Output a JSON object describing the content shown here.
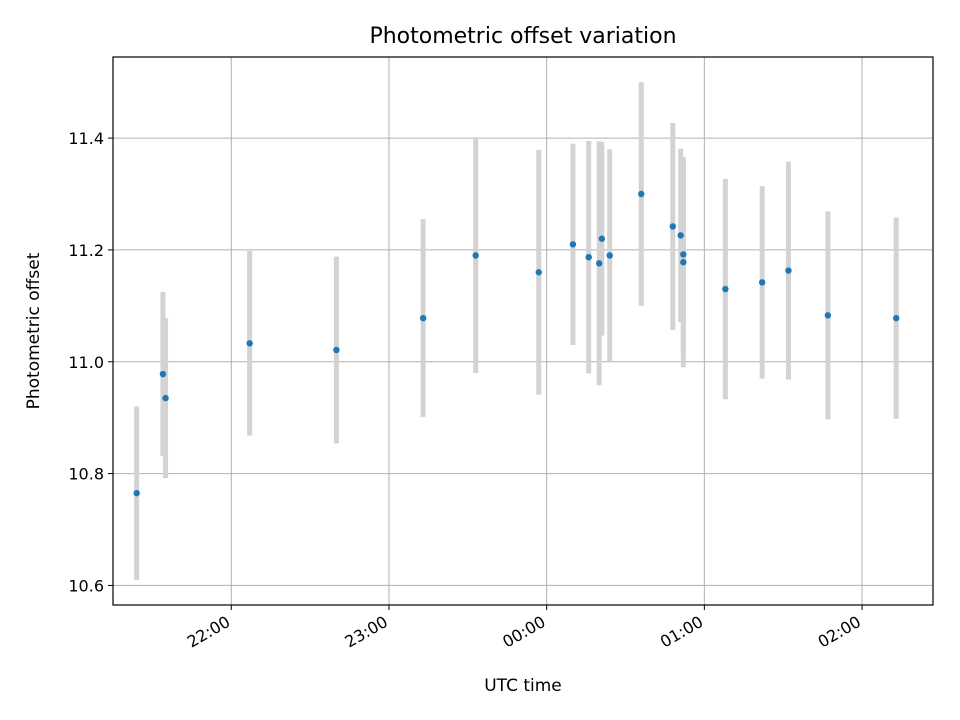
{
  "chart_data": {
    "type": "scatter",
    "title": "Photometric offset variation",
    "xlabel": "UTC time",
    "ylabel": "Photometric offset",
    "x_unit": "UTC hh:mm (times after midnight shown past 24:00)",
    "xlim": [
      "21:15",
      "02:27"
    ],
    "ylim": [
      10.565,
      11.545
    ],
    "grid": true,
    "x_tick_labels": [
      "22:00",
      "23:00",
      "00:00",
      "01:00",
      "02:00"
    ],
    "y_tick_labels": [
      "10.6",
      "10.8",
      "11.0",
      "11.2",
      "11.4"
    ],
    "colors": {
      "marker": "#1f77b4",
      "errorbar": "#d3d3d3",
      "grid": "#b0b0b0"
    },
    "series": [
      {
        "points": [
          {
            "t": "21:24",
            "y": 10.765,
            "err": 0.155
          },
          {
            "t": "21:34",
            "y": 10.978,
            "err": 0.147
          },
          {
            "t": "21:35",
            "y": 10.935,
            "err": 0.143
          },
          {
            "t": "22:07",
            "y": 11.033,
            "err": 0.165
          },
          {
            "t": "22:40",
            "y": 11.021,
            "err": 0.167
          },
          {
            "t": "23:13",
            "y": 11.078,
            "err": 0.177
          },
          {
            "t": "23:33",
            "y": 11.19,
            "err": 0.21
          },
          {
            "t": "23:57",
            "y": 11.16,
            "err": 0.219
          },
          {
            "t": "24:10",
            "y": 11.21,
            "err": 0.18
          },
          {
            "t": "24:16",
            "y": 11.187,
            "err": 0.208
          },
          {
            "t": "24:20",
            "y": 11.176,
            "err": 0.218
          },
          {
            "t": "24:21",
            "y": 11.22,
            "err": 0.173
          },
          {
            "t": "24:24",
            "y": 11.19,
            "err": 0.19
          },
          {
            "t": "24:36",
            "y": 11.3,
            "err": 0.2
          },
          {
            "t": "24:48",
            "y": 11.242,
            "err": 0.185
          },
          {
            "t": "24:51",
            "y": 11.226,
            "err": 0.155
          },
          {
            "t": "24:52",
            "y": 11.192,
            "err": 0.173
          },
          {
            "t": "24:52",
            "y": 11.178,
            "err": 0.188
          },
          {
            "t": "25:08",
            "y": 11.13,
            "err": 0.197
          },
          {
            "t": "25:22",
            "y": 11.142,
            "err": 0.172
          },
          {
            "t": "25:32",
            "y": 11.163,
            "err": 0.195
          },
          {
            "t": "25:47",
            "y": 11.083,
            "err": 0.186
          },
          {
            "t": "26:13",
            "y": 11.078,
            "err": 0.18
          }
        ]
      }
    ]
  }
}
